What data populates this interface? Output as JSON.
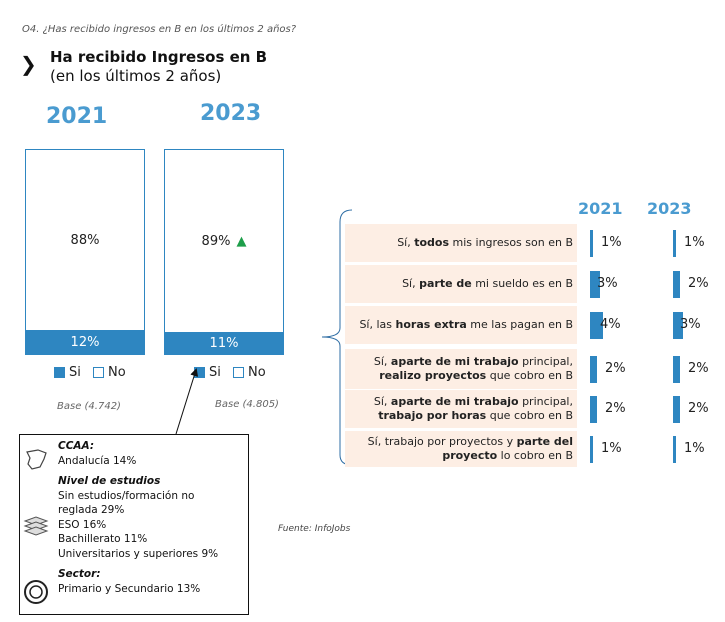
{
  "question": "O4. ¿Has recibido ingresos en B en los últimos 2 años?",
  "title_bold": "Ha recibido Ingresos en B",
  "title_sub": "(en los últimos 2 años)",
  "chart_data": [
    {
      "type": "bar",
      "stacked": true,
      "categories": [
        "2021",
        "2023"
      ],
      "series": [
        {
          "name": "Si",
          "values": [
            12,
            11
          ],
          "labels": [
            "12%",
            "11%"
          ],
          "color": "#2e86c1"
        },
        {
          "name": "No",
          "values": [
            88,
            89
          ],
          "labels": [
            "88%",
            "89%"
          ],
          "color": "#ffffff"
        }
      ],
      "bases": [
        "Base (4.742)",
        "Base (4.805)"
      ],
      "trend_2023": "up",
      "trend_color": "#1e9e4a"
    },
    {
      "type": "bar",
      "orientation": "horizontal",
      "years": [
        "2021",
        "2023"
      ],
      "rows": [
        {
          "segments": [
            {
              "t": "Sí, ",
              "b": false
            },
            {
              "t": "todos",
              "b": true
            },
            {
              "t": " mis ingresos son en B",
              "b": false
            }
          ],
          "v2021": 1,
          "v2023": 1,
          "l2021": "1%",
          "l2023": "1%"
        },
        {
          "segments": [
            {
              "t": "Sí, ",
              "b": false
            },
            {
              "t": "parte de",
              "b": true
            },
            {
              "t": " mi sueldo es en B",
              "b": false
            }
          ],
          "v2021": 3,
          "v2023": 2,
          "l2021": "3%",
          "l2023": "2%"
        },
        {
          "segments": [
            {
              "t": "Sí, las ",
              "b": false
            },
            {
              "t": "horas extra",
              "b": true
            },
            {
              "t": " me las pagan en B",
              "b": false
            }
          ],
          "v2021": 4,
          "v2023": 3,
          "l2021": "4%",
          "l2023": "3%"
        },
        {
          "segments": [
            {
              "t": "Sí, ",
              "b": false
            },
            {
              "t": "aparte de mi trabajo",
              "b": true
            },
            {
              "t": " principal, ",
              "b": false
            },
            {
              "t": "realizo proyectos",
              "b": true
            },
            {
              "t": " que cobro en B",
              "b": false
            }
          ],
          "v2021": 2,
          "v2023": 2,
          "l2021": "2%",
          "l2023": "2%"
        },
        {
          "segments": [
            {
              "t": "Sí, ",
              "b": false
            },
            {
              "t": "aparte de mi trabajo",
              "b": true
            },
            {
              "t": " principal, ",
              "b": false
            },
            {
              "t": "trabajo por horas",
              "b": true
            },
            {
              "t": " que cobro en B",
              "b": false
            }
          ],
          "v2021": 2,
          "v2023": 2,
          "l2021": "2%",
          "l2023": "2%"
        },
        {
          "segments": [
            {
              "t": "Sí, trabajo por proyectos y ",
              "b": false
            },
            {
              "t": "parte del proyecto",
              "b": true
            },
            {
              "t": " lo cobro en B",
              "b": false
            }
          ],
          "v2021": 1,
          "v2023": 1,
          "l2021": "1%",
          "l2023": "1%"
        }
      ]
    }
  ],
  "legend": {
    "si": "Si",
    "no": "No"
  },
  "info": {
    "ccaa_h": "CCAA:",
    "ccaa": "Andalucía 14%",
    "estudios_h": "Nivel de estudios",
    "estudios": [
      "Sin estudios/formación no reglada 29%",
      "ESO 16%",
      "Bachillerato 11%",
      "Universitarios y superiores 9%"
    ],
    "sector_h": "Sector:",
    "sector": "Primario y Secundario 13%"
  },
  "source": "Fuente: InfoJobs"
}
